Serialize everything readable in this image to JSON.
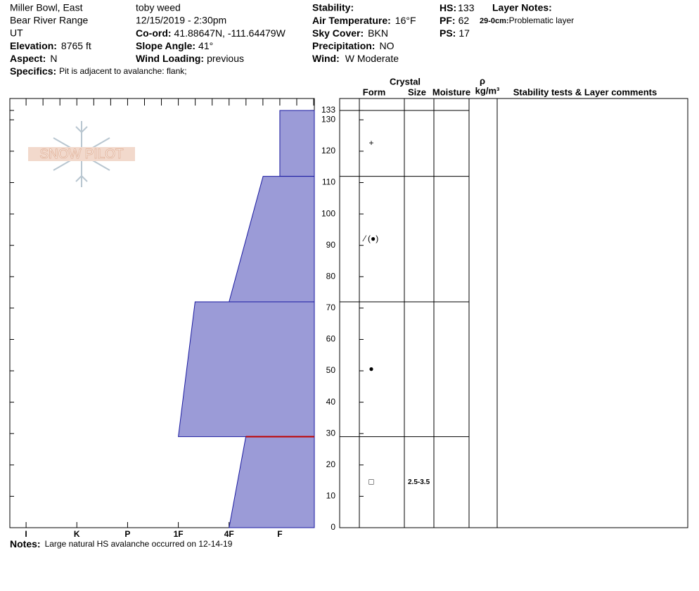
{
  "header": {
    "location": "Miller Bowl, East",
    "range": "Bear River Range",
    "state": "UT",
    "elevation": {
      "label": "Elevation:",
      "value": "8765 ft"
    },
    "aspect": {
      "label": "Aspect:",
      "value": "N"
    },
    "specifics": {
      "label": "Specifics:",
      "value": "Pit is adjacent to avalanche: flank;"
    },
    "observer": "toby weed",
    "datetime": "12/15/2019 - 2:30pm",
    "coord": {
      "label": "Co-ord:",
      "value": "41.88647N, -111.64479W"
    },
    "slope_angle": {
      "label": "Slope Angle:",
      "value": "41°"
    },
    "wind_loading": {
      "label": "Wind Loading:",
      "value": "previous"
    },
    "stability": {
      "label": "Stability:"
    },
    "air_temperature": {
      "label": "Air Temperature:",
      "value": "16°F"
    },
    "sky_cover": {
      "label": "Sky Cover:",
      "value": "BKN"
    },
    "precipitation": {
      "label": "Precipitation:",
      "value": "NO"
    },
    "wind": {
      "label": "Wind:",
      "value": "W Moderate"
    },
    "hs": {
      "label": "HS:",
      "value": 133
    },
    "pf": {
      "label": "PF:",
      "value": 62
    },
    "ps": {
      "label": "PS:",
      "value": 17
    },
    "layer_notes": {
      "title": "Layer Notes:",
      "range": "29-0cm:",
      "text": "Problematic layer"
    }
  },
  "logo": "SNOW PILOT",
  "table": {
    "crystal": "Crystal",
    "form": "Form",
    "size": "Size",
    "moisture": "Moisture",
    "rho": "ρ",
    "density_unit": "kg/m³",
    "comments": "Stability tests & Layer comments"
  },
  "chart_data": {
    "type": "snow-profile",
    "xlim": [
      6.32,
      0.32
    ],
    "xticks": [
      {
        "value": 6,
        "label": "I"
      },
      {
        "value": 5,
        "label": "K"
      },
      {
        "value": 4,
        "label": "P"
      },
      {
        "value": 3,
        "label": "1F"
      },
      {
        "value": 2,
        "label": "4F"
      },
      {
        "value": 1,
        "label": "F"
      }
    ],
    "ylim": [
      0,
      136.8
    ],
    "yticks": [
      0,
      10,
      20,
      30,
      40,
      50,
      60,
      70,
      80,
      90,
      100,
      110,
      120,
      130,
      133
    ],
    "color": "#9b9bd7",
    "critical_layer": 29,
    "critical_color": "#c00000",
    "layers": [
      {
        "top": 133,
        "bottom": 112,
        "hardness_top": 1,
        "hardness_bottom": 1,
        "form": "+"
      },
      {
        "top": 112,
        "bottom": 72,
        "hardness_top": 1.33,
        "hardness_bottom": 2,
        "form": "⁄ (●)"
      },
      {
        "top": 72,
        "bottom": 29,
        "hardness_top": 2.67,
        "hardness_bottom": 3,
        "form": "●"
      },
      {
        "top": 29,
        "bottom": 0,
        "hardness_top": 1.67,
        "hardness_bottom": 2,
        "form": "□",
        "size": "2.5-3.5"
      }
    ]
  },
  "notes": {
    "label": "Notes:",
    "text": "Large natural HS avalanche occurred on 12-14-19"
  }
}
